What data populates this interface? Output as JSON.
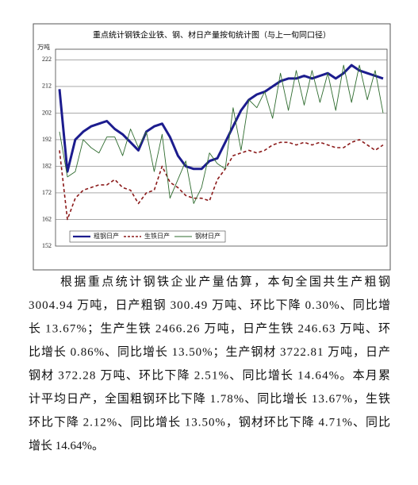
{
  "chart_data": {
    "type": "line",
    "title": "重点统计钢铁企业铁、钢、材日产量按旬统计图（与上一旬同口径）",
    "y_label": "万吨",
    "ylim": [
      152,
      226
    ],
    "yticks": [
      152,
      162,
      172,
      182,
      192,
      202,
      212,
      222
    ],
    "grid": true,
    "series": [
      {
        "name": "粗钢日产",
        "color": "#1c1c8e",
        "style": "solid",
        "width": 3,
        "values": [
          211,
          180,
          192,
          195,
          197,
          198,
          199,
          196,
          194,
          191,
          188,
          195,
          197,
          198,
          193,
          186,
          182,
          181,
          181,
          184,
          185,
          191,
          197,
          203,
          207,
          209,
          210,
          212,
          214,
          215,
          215,
          216,
          215,
          216,
          217,
          215,
          217,
          220,
          218,
          217,
          216,
          215
        ]
      },
      {
        "name": "生铁日产",
        "color": "#8b1a1a",
        "style": "dashed",
        "width": 1.6,
        "values": [
          188,
          162,
          170,
          173,
          174,
          175,
          175,
          177,
          174,
          173,
          168,
          172,
          173,
          182,
          176,
          174,
          171,
          170,
          170,
          169,
          177,
          181,
          186,
          187,
          188,
          187,
          188,
          190,
          191,
          191,
          190,
          191,
          190,
          191,
          190,
          189,
          189,
          191,
          192,
          190,
          188,
          190
        ]
      },
      {
        "name": "钢材日产",
        "color": "#2e6b2e",
        "style": "solid",
        "width": 0.9,
        "values": [
          195,
          178,
          180,
          192,
          189,
          187,
          193,
          193,
          186,
          196,
          189,
          195,
          180,
          194,
          170,
          177,
          184,
          168,
          174,
          187,
          183,
          181,
          204,
          188,
          207,
          204,
          210,
          200,
          217,
          203,
          218,
          205,
          218,
          206,
          217,
          203,
          220,
          206,
          220,
          207,
          218,
          202
        ]
      }
    ]
  },
  "paragraph": {
    "lines": [
      "根据重点统计钢铁企业产量估算，本旬全国共生产粗钢",
      "3004.94 万吨，日产粗钢 300.49 万吨、环比下降 0.30%、同比增",
      "长 13.67%；生产生铁 2466.26 万吨，日产生铁 246.63 万吨、环",
      "比增长 0.86%、同比增长 13.50%；生产钢材 3722.81 万吨，日产",
      "钢材 372.28 万吨、环比下降 2.51%、同比增长 14.64%。本月累",
      "计平均日产，全国粗钢环比下降 1.78%、同比增长 13.67%，生铁",
      "环比下降 2.12%、同比增长 13.50%，钢材环比下降 4.71%、同比",
      "增长 14.64%。"
    ]
  }
}
